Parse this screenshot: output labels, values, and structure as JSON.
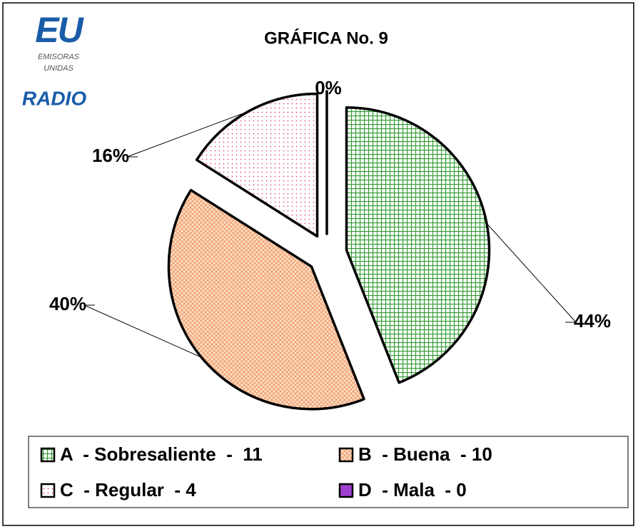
{
  "logo": {
    "mark": "EU",
    "line1": "EMISORAS",
    "line2": "UNIDAS",
    "radio": "RADIO"
  },
  "chart_data": {
    "type": "pie",
    "title": "GRÁFICA No. 9",
    "categories": [
      "A  - Sobresaliente  -  11",
      "B  - Buena  - 10",
      "C  - Regular  - 4",
      "D  - Mala  - 0"
    ],
    "values": [
      44,
      40,
      16,
      0
    ],
    "value_labels": [
      "44%",
      "40%",
      "16%",
      "0%"
    ],
    "colors": [
      "#2e9a2e",
      "#f0a070",
      "#e83060",
      "#a040d0"
    ]
  }
}
